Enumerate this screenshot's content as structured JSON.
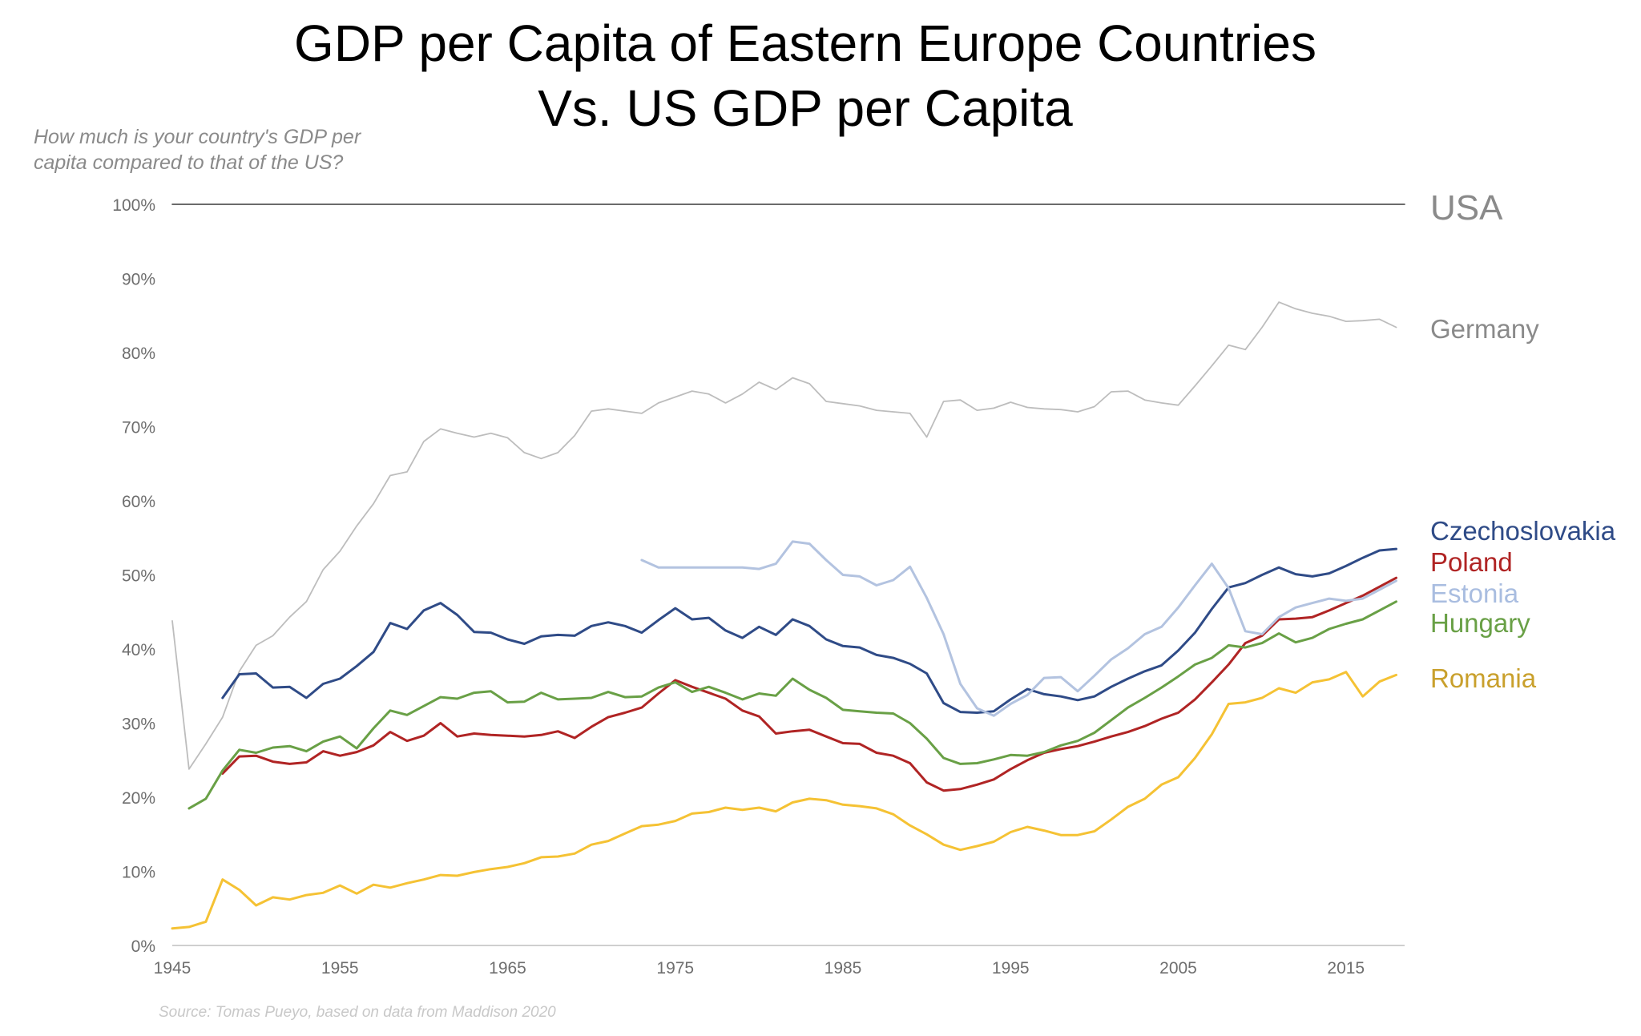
{
  "chart_data": {
    "type": "line",
    "title_line1": "GDP per Capita of Eastern Europe Countries",
    "title_line2": "Vs. US GDP per Capita",
    "subtitle": "How much is your country's GDP per capita compared to that of the US?",
    "source": "Source: Tomas Pueyo, based on data from Maddison 2020",
    "xlabel": "",
    "ylabel": "",
    "xlim": [
      1945,
      2018.5
    ],
    "ylim": [
      0,
      100
    ],
    "x_ticks": [
      1945,
      1955,
      1965,
      1975,
      1985,
      1995,
      2005,
      2015
    ],
    "y_ticks": [
      "0%",
      "10%",
      "20%",
      "30%",
      "40%",
      "50%",
      "60%",
      "70%",
      "80%",
      "90%",
      "100%"
    ],
    "grid": false,
    "series": [
      {
        "name": "USA",
        "color": "#3a3a3a",
        "x": [
          1945,
          2018.5
        ],
        "values": [
          100,
          100
        ]
      },
      {
        "name": "Germany",
        "color": "#bdbdbd",
        "x": [
          1945,
          1946,
          1947,
          1948,
          1949,
          1950,
          1951,
          1952,
          1953,
          1954,
          1955,
          1956,
          1957,
          1958,
          1959,
          1960,
          1961,
          1962,
          1963,
          1964,
          1965,
          1966,
          1967,
          1968,
          1969,
          1970,
          1971,
          1972,
          1973,
          1974,
          1975,
          1976,
          1977,
          1978,
          1979,
          1980,
          1981,
          1982,
          1983,
          1984,
          1985,
          1986,
          1987,
          1988,
          1989,
          1990,
          1991,
          1992,
          1993,
          1994,
          1995,
          1996,
          1997,
          1998,
          1999,
          2000,
          2001,
          2002,
          2003,
          2004,
          2005,
          2006,
          2007,
          2008,
          2009,
          2010,
          2011,
          2012,
          2013,
          2014,
          2015,
          2016,
          2017,
          2018
        ],
        "values": [
          43.8,
          23.8,
          27.2,
          30.8,
          37.0,
          40.5,
          41.8,
          44.3,
          46.4,
          50.7,
          53.2,
          56.6,
          59.6,
          63.4,
          63.9,
          68.0,
          69.7,
          69.1,
          68.6,
          69.1,
          68.5,
          66.5,
          65.7,
          66.5,
          68.8,
          72.1,
          72.4,
          72.1,
          71.8,
          73.2,
          74.0,
          74.8,
          74.4,
          73.2,
          74.4,
          76.0,
          75.0,
          76.6,
          75.8,
          73.4,
          73.1,
          72.8,
          72.2,
          72.0,
          71.8,
          68.6,
          73.4,
          73.6,
          72.2,
          72.5,
          73.3,
          72.6,
          72.4,
          72.3,
          72.0,
          72.7,
          74.7,
          74.8,
          73.6,
          73.2,
          72.9,
          75.5,
          78.2,
          81.0,
          80.4,
          83.4,
          86.8,
          85.9,
          85.3,
          84.9,
          84.2,
          84.3,
          84.5,
          83.4
        ]
      },
      {
        "name": "Czechoslovakia",
        "color": "#2f4b87",
        "x": [
          1948,
          1949,
          1950,
          1951,
          1952,
          1953,
          1954,
          1955,
          1956,
          1957,
          1958,
          1959,
          1960,
          1961,
          1962,
          1963,
          1964,
          1965,
          1966,
          1967,
          1968,
          1969,
          1970,
          1971,
          1972,
          1973,
          1974,
          1975,
          1976,
          1977,
          1978,
          1979,
          1980,
          1981,
          1982,
          1983,
          1984,
          1985,
          1986,
          1987,
          1988,
          1989,
          1990,
          1991,
          1992,
          1993,
          1994,
          1995,
          1996,
          1997,
          1998,
          1999,
          2000,
          2001,
          2002,
          2003,
          2004,
          2005,
          2006,
          2007,
          2008,
          2009,
          2010,
          2011,
          2012,
          2013,
          2014,
          2015,
          2016,
          2017,
          2018
        ],
        "values": [
          33.4,
          36.6,
          36.7,
          34.8,
          34.9,
          33.4,
          35.3,
          36.0,
          37.7,
          39.6,
          43.5,
          42.7,
          45.2,
          46.2,
          44.6,
          42.3,
          42.2,
          41.3,
          40.7,
          41.7,
          41.9,
          41.8,
          43.1,
          43.6,
          43.1,
          42.2,
          43.9,
          45.5,
          44.0,
          44.2,
          42.5,
          41.5,
          43.0,
          41.9,
          44.0,
          43.1,
          41.3,
          40.4,
          40.2,
          39.2,
          38.8,
          38.0,
          36.7,
          32.7,
          31.5,
          31.4,
          31.6,
          33.2,
          34.6,
          33.9,
          33.6,
          33.1,
          33.6,
          34.9,
          36.0,
          37.0,
          37.8,
          39.8,
          42.2,
          45.4,
          48.3,
          48.9,
          50.0,
          51.0,
          50.1,
          49.8,
          50.2,
          51.2,
          52.3,
          53.3,
          53.5
        ]
      },
      {
        "name": "Poland",
        "color": "#b02424",
        "x": [
          1948,
          1949,
          1950,
          1951,
          1952,
          1953,
          1954,
          1955,
          1956,
          1957,
          1958,
          1959,
          1960,
          1961,
          1962,
          1963,
          1964,
          1965,
          1966,
          1967,
          1968,
          1969,
          1970,
          1971,
          1972,
          1973,
          1974,
          1975,
          1976,
          1977,
          1978,
          1979,
          1980,
          1981,
          1982,
          1983,
          1984,
          1985,
          1986,
          1987,
          1988,
          1989,
          1990,
          1991,
          1992,
          1993,
          1994,
          1995,
          1996,
          1997,
          1998,
          1999,
          2000,
          2001,
          2002,
          2003,
          2004,
          2005,
          2006,
          2007,
          2008,
          2009,
          2010,
          2011,
          2012,
          2013,
          2014,
          2015,
          2016,
          2017,
          2018
        ],
        "values": [
          23.2,
          25.5,
          25.6,
          24.8,
          24.5,
          24.7,
          26.2,
          25.6,
          26.1,
          27.0,
          28.8,
          27.6,
          28.3,
          30.0,
          28.2,
          28.6,
          28.4,
          28.3,
          28.2,
          28.4,
          28.9,
          28.0,
          29.5,
          30.8,
          31.4,
          32.1,
          34.0,
          35.8,
          34.9,
          34.1,
          33.3,
          31.7,
          30.9,
          28.6,
          28.9,
          29.1,
          28.2,
          27.3,
          27.2,
          26.0,
          25.6,
          24.6,
          22.0,
          20.9,
          21.1,
          21.7,
          22.4,
          23.8,
          25.0,
          26.0,
          26.5,
          26.9,
          27.5,
          28.2,
          28.8,
          29.6,
          30.6,
          31.4,
          33.2,
          35.5,
          37.9,
          40.8,
          41.8,
          44.0,
          44.1,
          44.3,
          45.2,
          46.2,
          47.2,
          48.4,
          49.6
        ]
      },
      {
        "name": "Estonia",
        "color": "#b3c3e0",
        "x": [
          1973,
          1974,
          1975,
          1976,
          1977,
          1978,
          1979,
          1980,
          1981,
          1982,
          1983,
          1984,
          1985,
          1986,
          1987,
          1988,
          1989,
          1990,
          1991,
          1992,
          1993,
          1994,
          1995,
          1996,
          1997,
          1998,
          1999,
          2000,
          2001,
          2002,
          2003,
          2004,
          2005,
          2006,
          2007,
          2008,
          2009,
          2010,
          2011,
          2012,
          2013,
          2014,
          2015,
          2016,
          2017,
          2018
        ],
        "values": [
          52.0,
          51.0,
          51.0,
          51.0,
          51.0,
          51.0,
          51.0,
          50.8,
          51.5,
          54.5,
          54.2,
          52.0,
          50.0,
          49.8,
          48.6,
          49.3,
          51.1,
          46.9,
          42.0,
          35.3,
          32.0,
          31.0,
          32.6,
          33.8,
          36.1,
          36.2,
          34.3,
          36.4,
          38.6,
          40.1,
          42.0,
          43.0,
          45.6,
          48.6,
          51.5,
          48.2,
          42.4,
          42.0,
          44.3,
          45.6,
          46.2,
          46.8,
          46.5,
          46.8,
          48.0,
          49.2
        ]
      },
      {
        "name": "Hungary",
        "color": "#69a046",
        "x": [
          1946,
          1947,
          1948,
          1949,
          1950,
          1951,
          1952,
          1953,
          1954,
          1955,
          1956,
          1957,
          1958,
          1959,
          1960,
          1961,
          1962,
          1963,
          1964,
          1965,
          1966,
          1967,
          1968,
          1969,
          1970,
          1971,
          1972,
          1973,
          1974,
          1975,
          1976,
          1977,
          1978,
          1979,
          1980,
          1981,
          1982,
          1983,
          1984,
          1985,
          1986,
          1987,
          1988,
          1989,
          1990,
          1991,
          1992,
          1993,
          1994,
          1995,
          1996,
          1997,
          1998,
          1999,
          2000,
          2001,
          2002,
          2003,
          2004,
          2005,
          2006,
          2007,
          2008,
          2009,
          2010,
          2011,
          2012,
          2013,
          2014,
          2015,
          2016,
          2017,
          2018
        ],
        "values": [
          18.5,
          19.8,
          23.6,
          26.4,
          26.0,
          26.7,
          26.9,
          26.2,
          27.5,
          28.2,
          26.6,
          29.3,
          31.7,
          31.1,
          32.3,
          33.5,
          33.3,
          34.1,
          34.3,
          32.8,
          32.9,
          34.1,
          33.2,
          33.3,
          33.4,
          34.2,
          33.5,
          33.6,
          34.8,
          35.5,
          34.2,
          34.9,
          34.1,
          33.2,
          34.0,
          33.7,
          36.0,
          34.5,
          33.4,
          31.8,
          31.6,
          31.4,
          31.3,
          30.0,
          27.9,
          25.3,
          24.5,
          24.6,
          25.1,
          25.7,
          25.6,
          26.1,
          27.0,
          27.6,
          28.7,
          30.4,
          32.1,
          33.4,
          34.8,
          36.3,
          37.9,
          38.8,
          40.5,
          40.2,
          40.8,
          42.1,
          40.9,
          41.5,
          42.7,
          43.4,
          44.0,
          45.2,
          46.4
        ]
      },
      {
        "name": "Romania",
        "color": "#f5c234",
        "x": [
          1945,
          1946,
          1947,
          1948,
          1949,
          1950,
          1951,
          1952,
          1953,
          1954,
          1955,
          1956,
          1957,
          1958,
          1959,
          1960,
          1961,
          1962,
          1963,
          1964,
          1965,
          1966,
          1967,
          1968,
          1969,
          1970,
          1971,
          1972,
          1973,
          1974,
          1975,
          1976,
          1977,
          1978,
          1979,
          1980,
          1981,
          1982,
          1983,
          1984,
          1985,
          1986,
          1987,
          1988,
          1989,
          1990,
          1991,
          1992,
          1993,
          1994,
          1995,
          1996,
          1997,
          1998,
          1999,
          2000,
          2001,
          2002,
          2003,
          2004,
          2005,
          2006,
          2007,
          2008,
          2009,
          2010,
          2011,
          2012,
          2013,
          2014,
          2015,
          2016,
          2017,
          2018
        ],
        "values": [
          2.3,
          2.5,
          3.2,
          8.9,
          7.5,
          5.4,
          6.5,
          6.2,
          6.8,
          7.1,
          8.1,
          7.0,
          8.2,
          7.8,
          8.4,
          8.9,
          9.5,
          9.4,
          9.9,
          10.3,
          10.6,
          11.1,
          11.9,
          12.0,
          12.4,
          13.6,
          14.1,
          15.1,
          16.1,
          16.3,
          16.8,
          17.8,
          18.0,
          18.6,
          18.3,
          18.6,
          18.1,
          19.3,
          19.8,
          19.6,
          19.0,
          18.8,
          18.5,
          17.7,
          16.2,
          15.0,
          13.6,
          12.9,
          13.4,
          14.0,
          15.3,
          16.0,
          15.5,
          14.9,
          14.9,
          15.4,
          17.0,
          18.7,
          19.8,
          21.7,
          22.7,
          25.3,
          28.5,
          32.6,
          32.8,
          33.4,
          34.7,
          34.1,
          35.5,
          35.9,
          36.9,
          33.6,
          35.6,
          36.5
        ]
      }
    ],
    "end_labels": {
      "usa": "USA",
      "germany": "Germany",
      "czechoslovakia": "Czechoslovakia",
      "poland": "Poland",
      "estonia": "Estonia",
      "hungary": "Hungary",
      "romania": "Romania"
    }
  }
}
